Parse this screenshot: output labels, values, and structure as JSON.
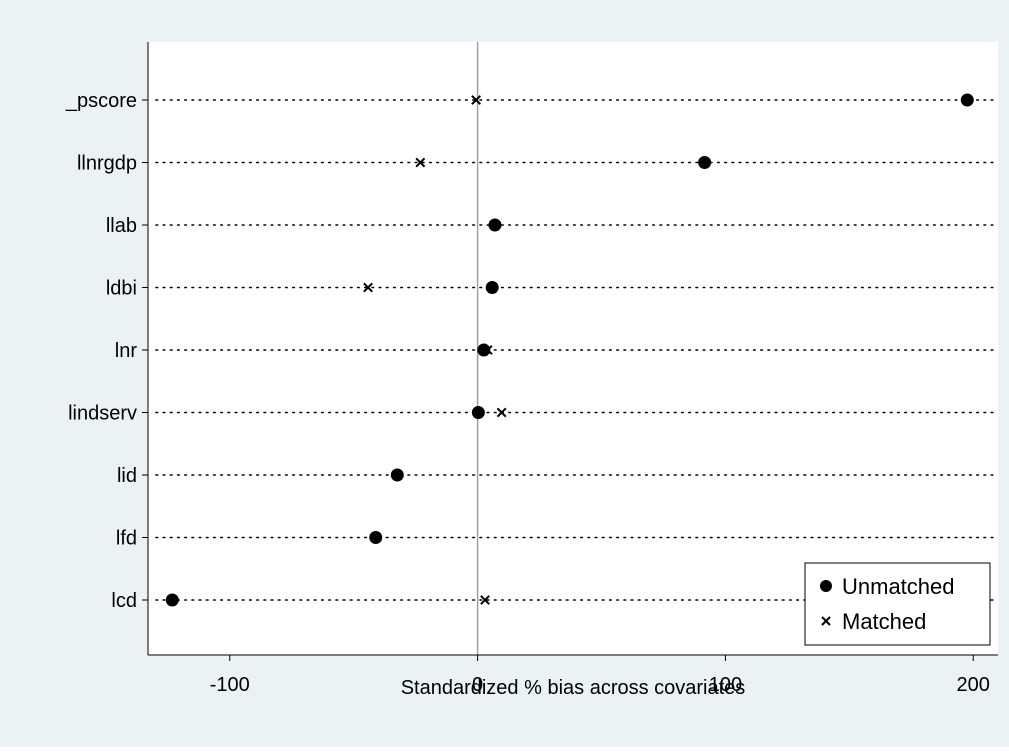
{
  "chart_data": {
    "type": "scatter",
    "title": "",
    "xlabel": "Standardized % bias across covariates",
    "ylabel": "",
    "xlim": [
      -133,
      210
    ],
    "xticks": [
      -100,
      0,
      100,
      200
    ],
    "grid": false,
    "reference_line_x": 0,
    "legend_position": "bottom-right",
    "colors": {
      "outer_background": "#eaf2f3",
      "plot_background": "#ffffff",
      "markers": "#000000",
      "reference_line": "#a0a0a0"
    },
    "categories": [
      "_pscore",
      "llnrgdp",
      "llab",
      "ldbi",
      "lnr",
      "lindserv",
      "lid",
      "lfd",
      "lcd"
    ],
    "series": [
      {
        "name": "Unmatched",
        "marker": "dot",
        "values": [
          197.6,
          91.6,
          7.0,
          5.9,
          2.5,
          0.3,
          -32.4,
          -41.1,
          -123.2
        ]
      },
      {
        "name": "Matched",
        "marker": "x",
        "values": [
          -0.6,
          -23.1,
          7.0,
          -44.2,
          4.1,
          9.7,
          null,
          null,
          3.0
        ]
      }
    ]
  }
}
